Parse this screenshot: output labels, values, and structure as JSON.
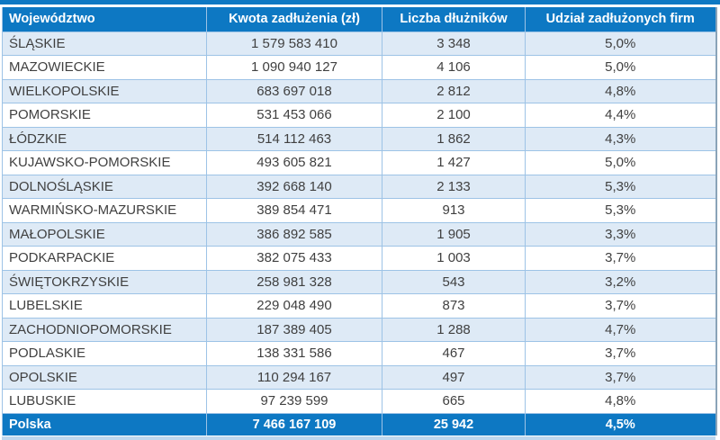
{
  "chart_data": {
    "type": "table",
    "columns": [
      "Województwo",
      "Kwota zadłużenia (zł)",
      "Liczba dłużników",
      "Udział zadłużonych firm"
    ],
    "rows": [
      [
        "ŚLĄSKIE",
        "1 579 583 410",
        "3 348",
        "5,0%"
      ],
      [
        "MAZOWIECKIE",
        "1 090 940 127",
        "4 106",
        "5,0%"
      ],
      [
        "WIELKOPOLSKIE",
        "683 697 018",
        "2 812",
        "4,8%"
      ],
      [
        "POMORSKIE",
        "531 453 066",
        "2 100",
        "4,4%"
      ],
      [
        "ŁÓDZKIE",
        "514 112 463",
        "1 862",
        "4,3%"
      ],
      [
        "KUJAWSKO-POMORSKIE",
        "493 605 821",
        "1 427",
        "5,0%"
      ],
      [
        "DOLNOŚLĄSKIE",
        "392 668 140",
        "2 133",
        "5,3%"
      ],
      [
        "WARMIŃSKO-MAZURSKIE",
        "389 854 471",
        "913",
        "5,3%"
      ],
      [
        "MAŁOPOLSKIE",
        "386 892 585",
        "1 905",
        "3,3%"
      ],
      [
        "PODKARPACKIE",
        "382 075 433",
        "1 003",
        "3,7%"
      ],
      [
        "ŚWIĘTOKRZYSKIE",
        "258 981 328",
        "543",
        "3,2%"
      ],
      [
        "LUBELSKIE",
        "229 048 490",
        "873",
        "3,7%"
      ],
      [
        "ZACHODNIOPOMORSKIE",
        "187 389 405",
        "1 288",
        "4,7%"
      ],
      [
        "PODLASKIE",
        "138 331 586",
        "467",
        "3,7%"
      ],
      [
        "OPOLSKIE",
        "110 294 167",
        "497",
        "3,7%"
      ],
      [
        "LUBUSKIE",
        "97 239 599",
        "665",
        "4,8%"
      ]
    ],
    "total_row": [
      "Polska",
      "7 466 167 109",
      "25 942",
      "4,5%"
    ],
    "layout_hints": {
      "banded_rows": true,
      "first_data_row_band": "light-blue",
      "grid": true
    }
  },
  "colors": {
    "header_blue": "#0d78c3",
    "band_light_blue": "#deeaf6",
    "row_white": "#ffffff",
    "grid_border": "#9dc3e6",
    "bottom_stripe": "#bdd7ee",
    "text_dark": "#404040",
    "header_text": "#ffffff"
  }
}
